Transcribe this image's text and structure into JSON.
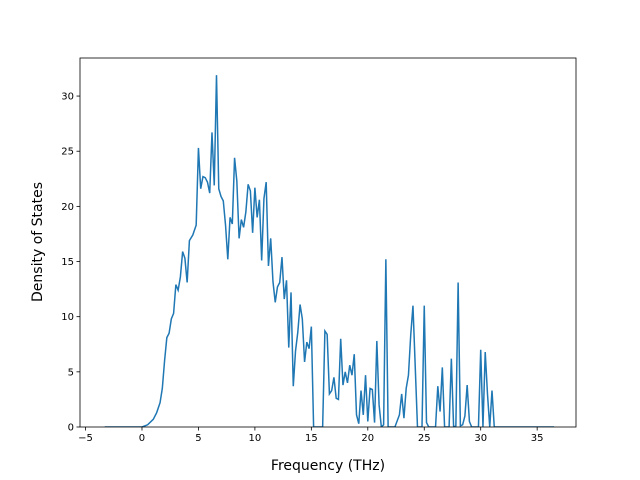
{
  "chart_data": {
    "type": "line",
    "xlabel": "Frequency (THz)",
    "ylabel": "Density of States",
    "color": "#1f77b4",
    "x": [
      -3.3,
      0,
      0.5,
      1.0,
      1.3,
      1.6,
      1.8,
      2.0,
      2.2,
      2.4,
      2.6,
      2.8,
      3.0,
      3.2,
      3.4,
      3.6,
      3.8,
      4.0,
      4.2,
      4.5,
      4.8,
      5.0,
      5.2,
      5.4,
      5.6,
      5.8,
      6.0,
      6.2,
      6.4,
      6.6,
      6.8,
      7.0,
      7.2,
      7.4,
      7.6,
      7.8,
      8.0,
      8.2,
      8.4,
      8.6,
      8.8,
      9.0,
      9.2,
      9.4,
      9.6,
      9.8,
      10.0,
      10.2,
      10.4,
      10.6,
      10.8,
      11.0,
      11.2,
      11.4,
      11.6,
      11.8,
      12.0,
      12.2,
      12.4,
      12.6,
      12.8,
      13.0,
      13.2,
      13.4,
      13.6,
      13.8,
      14.0,
      14.2,
      14.4,
      14.6,
      14.8,
      15.0,
      15.2,
      15.8,
      16.0,
      16.2,
      16.4,
      16.6,
      16.8,
      17.0,
      17.2,
      17.4,
      17.6,
      17.8,
      18.0,
      18.2,
      18.4,
      18.6,
      18.8,
      19.0,
      19.2,
      19.4,
      19.6,
      19.8,
      20.0,
      20.2,
      20.4,
      20.6,
      20.8,
      21.0,
      21.2,
      21.4,
      21.6,
      21.8,
      22.4,
      22.8,
      23.0,
      23.2,
      23.4,
      23.6,
      23.8,
      24.0,
      24.2,
      24.4,
      24.8,
      25.0,
      25.2,
      25.4,
      26.0,
      26.2,
      26.4,
      26.6,
      26.8,
      27.2,
      27.4,
      27.6,
      27.8,
      28.0,
      28.2,
      28.4,
      28.6,
      28.8,
      29.0,
      29.2,
      29.8,
      30.0,
      30.2,
      30.4,
      30.6,
      30.8,
      31.0,
      31.2,
      36.5
    ],
    "values": [
      0,
      0,
      0.2,
      0.7,
      1.3,
      2.2,
      3.5,
      6,
      8.1,
      8.5,
      9.8,
      10.3,
      12.9,
      12.4,
      13.6,
      15.9,
      15.3,
      13.1,
      16.9,
      17.4,
      18.3,
      25.3,
      21.6,
      22.7,
      22.6,
      22.2,
      21.2,
      26.7,
      21.9,
      31.9,
      21.6,
      20.9,
      20.5,
      18.3,
      15.2,
      19,
      18.4,
      24.4,
      22.3,
      17.1,
      18.8,
      18.1,
      19.5,
      22,
      21.4,
      17.6,
      21.7,
      19,
      20.6,
      15.1,
      20.7,
      22.2,
      14.6,
      17.1,
      13.2,
      11.3,
      12.7,
      13.1,
      15.4,
      11.6,
      13.3,
      7.2,
      12.2,
      3.7,
      6.9,
      8.6,
      11.1,
      9.8,
      5.9,
      7.7,
      7.1,
      9.1,
      0,
      0,
      0,
      8.7,
      8.4,
      3,
      3.3,
      4.5,
      2.6,
      2.5,
      8,
      3.8,
      5,
      4,
      5.6,
      4.7,
      6.6,
      1.1,
      0.3,
      3.3,
      1.1,
      4.7,
      0.5,
      3.5,
      3.4,
      0.4,
      7.8,
      2,
      0,
      0.2,
      15.2,
      0,
      0,
      1.1,
      3,
      0.8,
      3.5,
      4.7,
      8.3,
      11,
      5.5,
      0,
      0,
      11,
      0.4,
      0,
      0,
      3.7,
      1.4,
      5.4,
      0,
      0,
      6.2,
      0,
      0.1,
      13.1,
      0.1,
      0.2,
      1,
      3.8,
      0.5,
      0,
      0,
      7,
      0,
      6.8,
      3,
      0,
      3.3,
      0,
      0
    ],
    "xlim": [
      -5.49,
      38.44
    ],
    "ylim": [
      0,
      33.45
    ],
    "xticks": [
      {
        "value": -5,
        "label": "−5"
      },
      0,
      5,
      10,
      15,
      20,
      25,
      30,
      35
    ],
    "yticks": [
      0,
      5,
      10,
      15,
      20,
      25,
      30
    ]
  }
}
